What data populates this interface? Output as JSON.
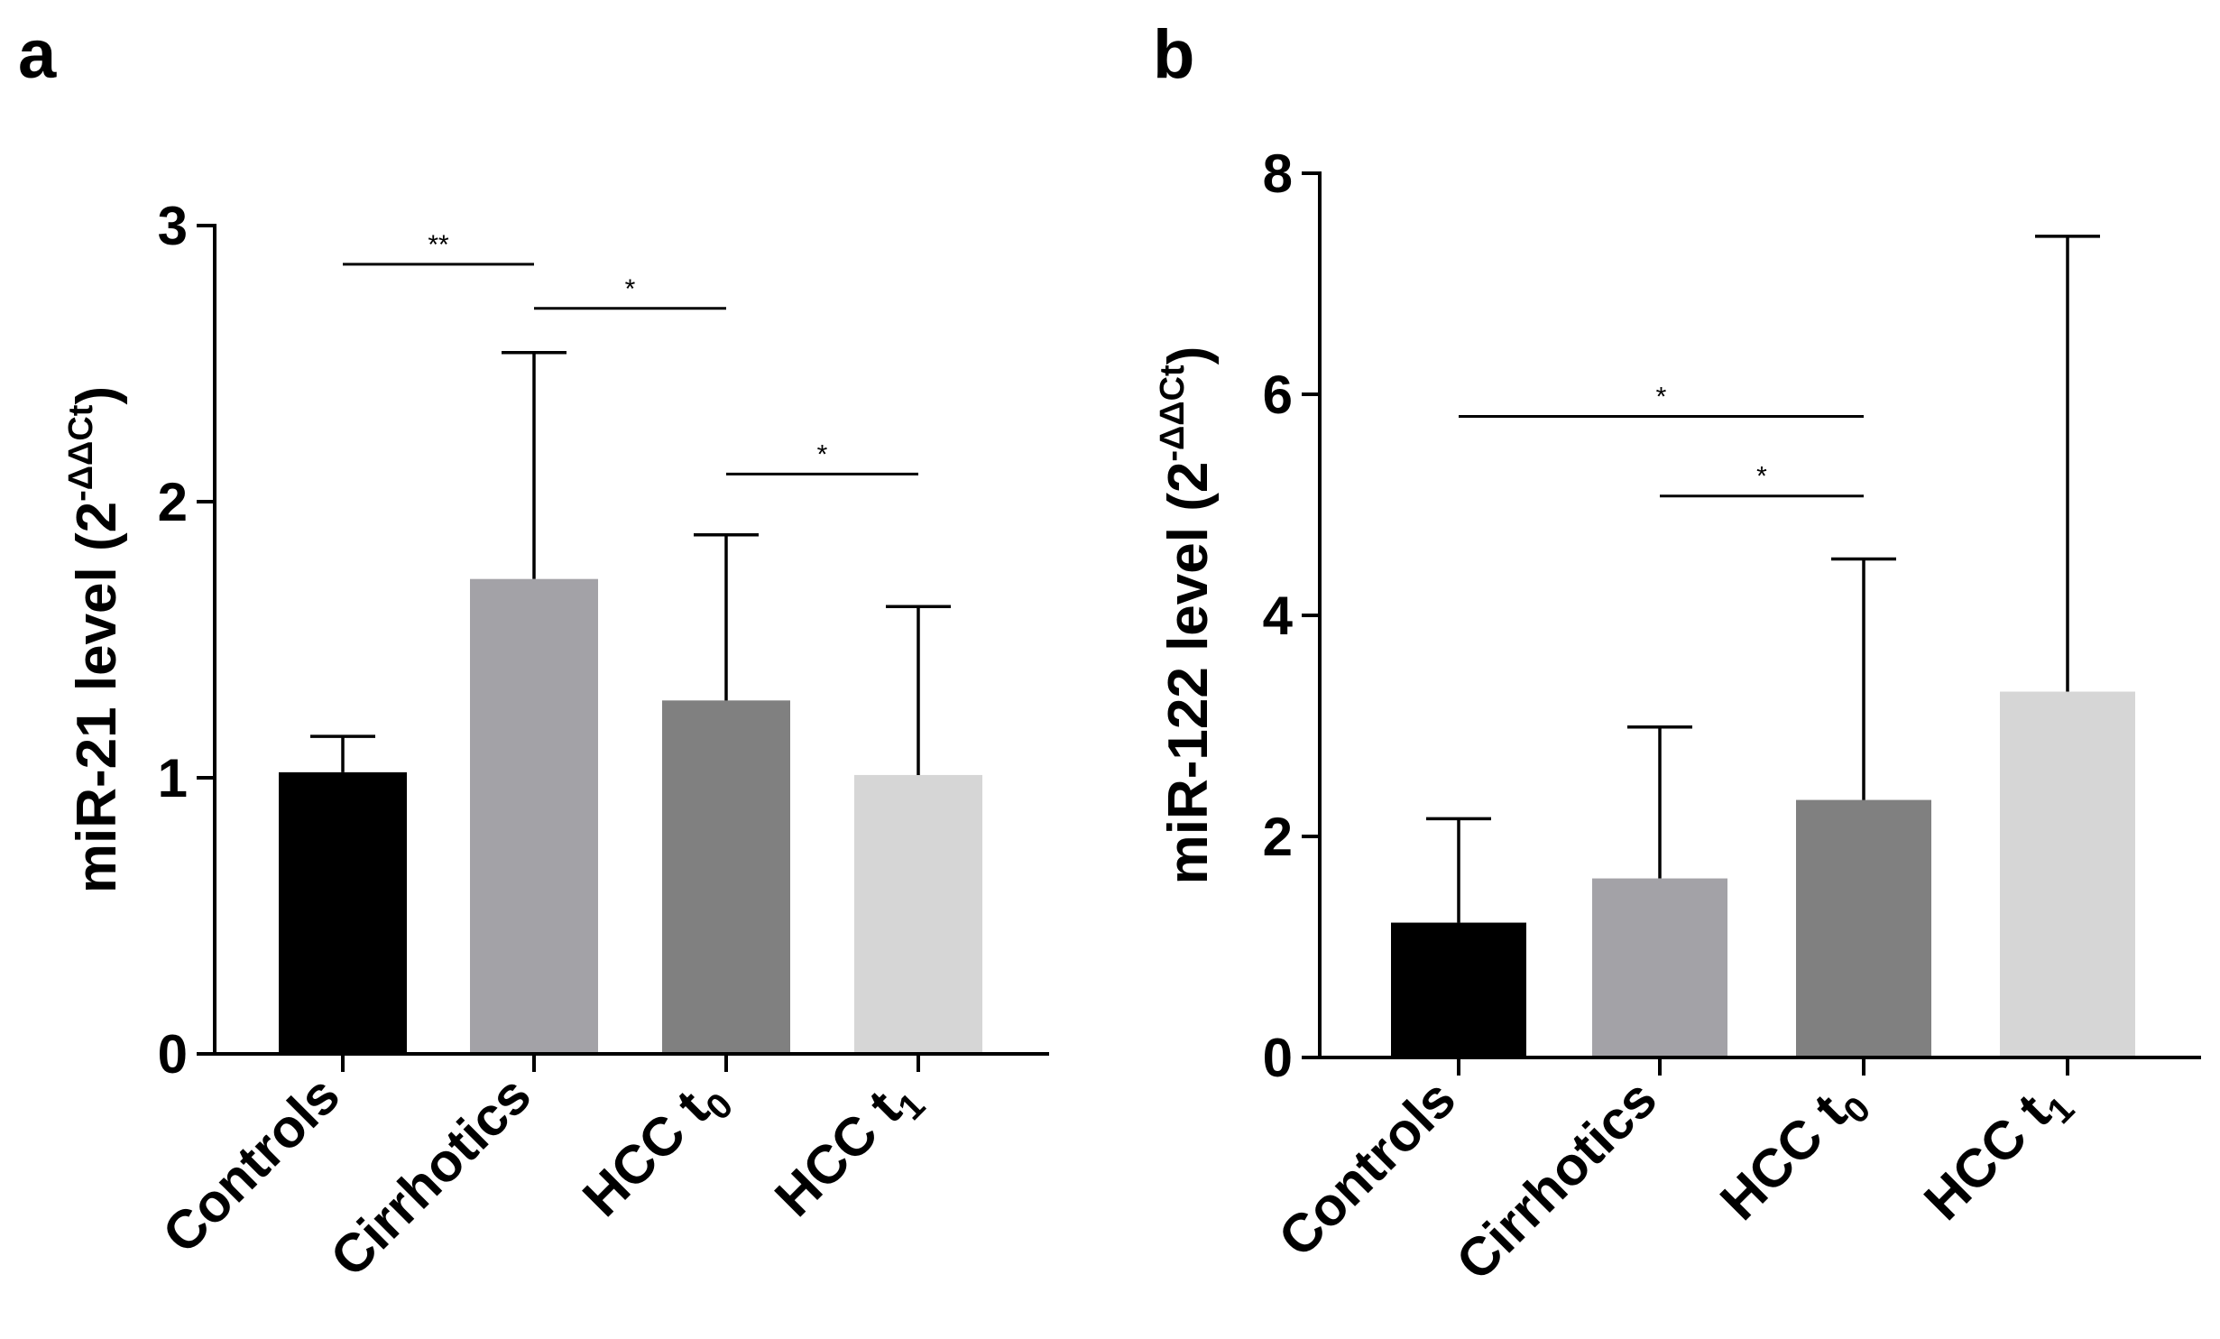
{
  "chart_data": [
    {
      "panel": "a",
      "type": "bar",
      "categories": [
        {
          "name": "Controls",
          "sub": ""
        },
        {
          "name": "Cirrhotics",
          "sub": ""
        },
        {
          "name": "HCC t",
          "sub": "0"
        },
        {
          "name": "HCC t",
          "sub": "1"
        }
      ],
      "values": [
        1.02,
        1.72,
        1.28,
        1.01
      ],
      "errors_upper": [
        1.15,
        2.54,
        1.88,
        1.62
      ],
      "colors": [
        "#000000",
        "#a3a2a7",
        "#808080",
        "#d6d6d6"
      ],
      "ylabel": "miR-21 level (2",
      "ylabel_sup": "-ΔΔCt",
      "ylabel_close": ")",
      "ylim": [
        0,
        3
      ],
      "yticks": [
        0,
        1,
        2,
        3
      ],
      "significance": [
        {
          "from": 0,
          "to": 1,
          "y": 2.86,
          "label": "**"
        },
        {
          "from": 1,
          "to": 2,
          "y": 2.7,
          "label": "*"
        },
        {
          "from": 2,
          "to": 3,
          "y": 2.1,
          "label": "*"
        }
      ]
    },
    {
      "panel": "b",
      "type": "bar",
      "categories": [
        {
          "name": "Controls",
          "sub": ""
        },
        {
          "name": "Cirrhotics",
          "sub": ""
        },
        {
          "name": "HCC t",
          "sub": "0"
        },
        {
          "name": "HCC t",
          "sub": "1"
        }
      ],
      "values": [
        1.22,
        1.62,
        2.33,
        3.31
      ],
      "errors_upper": [
        2.16,
        2.99,
        4.51,
        7.43
      ],
      "colors": [
        "#000000",
        "#a3a2a7",
        "#808080",
        "#d6d6d6"
      ],
      "ylabel": "miR-122 level (2",
      "ylabel_sup": "-ΔΔCt",
      "ylabel_close": ")",
      "ylim": [
        0,
        8
      ],
      "yticks": [
        0,
        2,
        4,
        6,
        8
      ],
      "significance": [
        {
          "from": 0,
          "to": 2,
          "y": 5.8,
          "label": "*"
        },
        {
          "from": 1,
          "to": 2,
          "y": 5.08,
          "label": "*"
        }
      ]
    }
  ]
}
